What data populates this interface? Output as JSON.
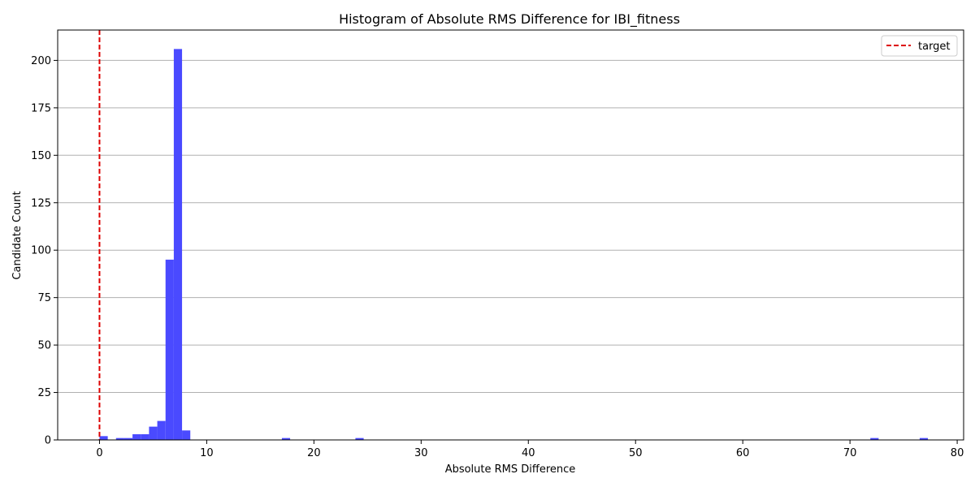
{
  "chart_data": {
    "type": "bar",
    "title": "Histogram of Absolute RMS Difference for IBI_fitness",
    "xlabel": "Absolute RMS Difference",
    "ylabel": "Candidate Count",
    "xlim": [
      -3.9,
      80.6
    ],
    "ylim": [
      0,
      216
    ],
    "xticks": [
      0,
      10,
      20,
      30,
      40,
      50,
      60,
      70,
      80
    ],
    "yticks": [
      0,
      25,
      50,
      75,
      100,
      125,
      150,
      175,
      200
    ],
    "grid": "y",
    "bin_width": 0.77,
    "bins": [
      {
        "x0": 0.0,
        "count": 2
      },
      {
        "x0": 1.54,
        "count": 1
      },
      {
        "x0": 2.31,
        "count": 1
      },
      {
        "x0": 3.08,
        "count": 3
      },
      {
        "x0": 3.85,
        "count": 3
      },
      {
        "x0": 4.62,
        "count": 7
      },
      {
        "x0": 5.39,
        "count": 10
      },
      {
        "x0": 6.16,
        "count": 95
      },
      {
        "x0": 6.93,
        "count": 206
      },
      {
        "x0": 7.7,
        "count": 5
      },
      {
        "x0": 17.01,
        "count": 1
      },
      {
        "x0": 23.87,
        "count": 1
      },
      {
        "x0": 71.9,
        "count": 1
      },
      {
        "x0": 76.5,
        "count": 1
      }
    ],
    "bar_color": "#4a4aff",
    "target_line": {
      "x": 0,
      "color": "#dd0000",
      "label": "target"
    },
    "legend": {
      "position": "top-right",
      "entries": [
        "target"
      ]
    }
  }
}
